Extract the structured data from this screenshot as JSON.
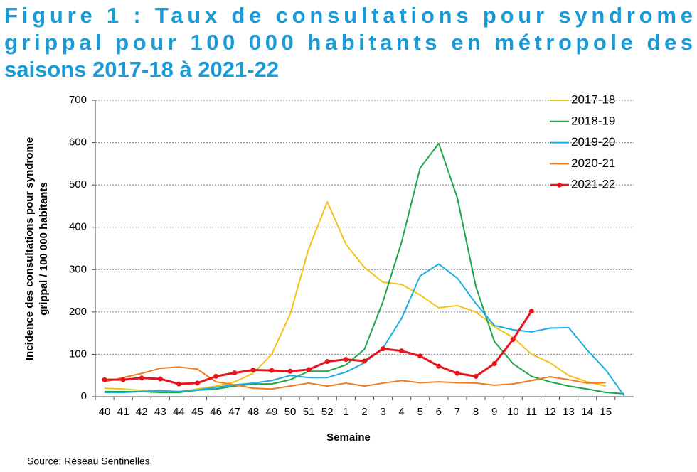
{
  "chart_data": {
    "type": "line",
    "title": [
      "Figure 1 : Taux de consultations pour syndrome",
      "grippal pour 100 000 habitants en métropole des",
      "saisons 2017-18 à 2021-22"
    ],
    "ylabel": [
      "Incidence des consultations pour syndrome",
      "grippal / 100 000 habitants"
    ],
    "xlabel": "Semaine",
    "source": "Source: Réseau Sentinelles",
    "categories": [
      "40",
      "41",
      "42",
      "43",
      "44",
      "45",
      "46",
      "47",
      "48",
      "49",
      "50",
      "51",
      "52",
      "1",
      "2",
      "3",
      "4",
      "5",
      "6",
      "7",
      "8",
      "9",
      "10",
      "11",
      "12",
      "13",
      "14",
      "15",
      null
    ],
    "series": [
      {
        "name": "2017-18",
        "color": "#f5c218",
        "markers": false,
        "values": [
          20,
          18,
          15,
          12,
          12,
          18,
          25,
          35,
          55,
          100,
          195,
          350,
          460,
          360,
          305,
          270,
          265,
          240,
          210,
          215,
          200,
          165,
          140,
          100,
          80,
          50,
          35,
          25,
          null
        ]
      },
      {
        "name": "2018-19",
        "color": "#1fa64a",
        "markers": false,
        "values": [
          12,
          12,
          12,
          10,
          10,
          15,
          18,
          25,
          30,
          30,
          40,
          60,
          60,
          75,
          112,
          225,
          365,
          540,
          598,
          470,
          260,
          130,
          78,
          48,
          35,
          25,
          18,
          10,
          7
        ]
      },
      {
        "name": "2019-20",
        "color": "#1aaee3",
        "markers": false,
        "values": [
          10,
          10,
          12,
          14,
          12,
          16,
          22,
          28,
          32,
          38,
          50,
          45,
          45,
          58,
          80,
          115,
          185,
          285,
          313,
          280,
          220,
          168,
          158,
          153,
          162,
          163,
          110,
          63,
          2
        ]
      },
      {
        "name": "2020-21",
        "color": "#f07c22",
        "markers": false,
        "values": [
          35,
          45,
          55,
          67,
          70,
          65,
          35,
          28,
          20,
          18,
          25,
          32,
          25,
          32,
          25,
          32,
          38,
          33,
          35,
          33,
          32,
          27,
          30,
          38,
          47,
          40,
          32,
          33,
          null
        ]
      },
      {
        "name": "2021-22",
        "color": "#e8141c",
        "markers": true,
        "values": [
          40,
          40,
          44,
          42,
          30,
          32,
          48,
          56,
          63,
          62,
          60,
          64,
          83,
          88,
          84,
          113,
          108,
          96,
          72,
          55,
          48,
          78,
          135,
          202,
          null,
          null,
          null,
          null,
          null
        ]
      }
    ],
    "ylim": [
      0,
      700
    ],
    "yticks": [
      0,
      100,
      200,
      300,
      400,
      500,
      600,
      700
    ],
    "grid": true,
    "legend": "top-right"
  }
}
